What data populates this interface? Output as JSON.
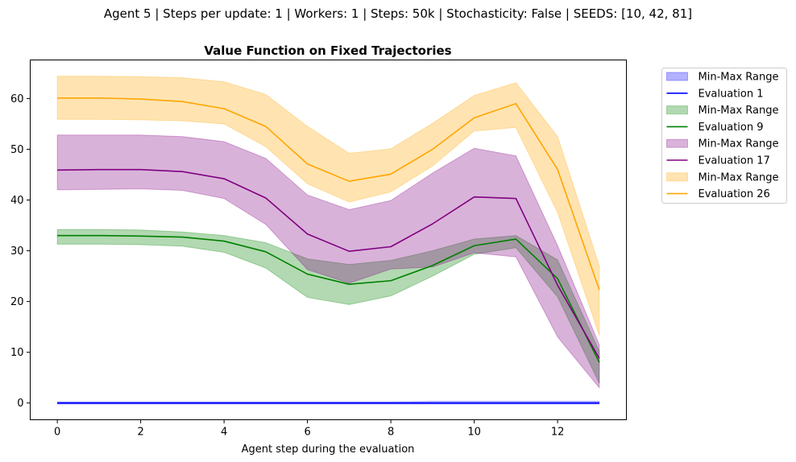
{
  "figure": {
    "suptitle": "Agent 5 | Steps per update: 1 | Workers: 1 | Steps: 50k | Stochasticity: False | SEEDS: [10, 42, 81]"
  },
  "chart_data": {
    "type": "line",
    "title": "Value Function on Fixed Trajectories",
    "xlabel": "Agent step during the evaluation",
    "ylabel": "",
    "xlim": [
      -0.65,
      13.65
    ],
    "ylim": [
      -3.3,
      67.6
    ],
    "xticks": [
      0,
      2,
      4,
      6,
      8,
      10,
      12
    ],
    "yticks": [
      0,
      10,
      20,
      30,
      40,
      50,
      60
    ],
    "grid": false,
    "legend_position": "outside-right-top",
    "x": [
      0,
      1,
      2,
      3,
      4,
      5,
      6,
      7,
      8,
      9,
      10,
      11,
      12,
      13
    ],
    "series": [
      {
        "name": "Evaluation 1",
        "band_name": "Min-Max Range",
        "color": "#0000ff",
        "band_color": "#0000ff",
        "values": [
          0,
          0,
          0,
          0,
          0,
          0,
          0,
          0,
          0,
          0,
          0,
          0,
          0,
          0
        ],
        "min": [
          -0.2,
          -0.2,
          -0.2,
          -0.2,
          -0.2,
          -0.2,
          -0.2,
          -0.2,
          -0.2,
          -0.2,
          -0.2,
          -0.2,
          -0.2,
          -0.2
        ],
        "max": [
          0.2,
          0.2,
          0.2,
          0.2,
          0.2,
          0.2,
          0.2,
          0.2,
          0.2,
          0.3,
          0.3,
          0.3,
          0.3,
          0.3
        ]
      },
      {
        "name": "Evaluation 9",
        "band_name": "Min-Max Range",
        "color": "#008000",
        "band_color": "#008000",
        "values": [
          33,
          33,
          32.9,
          32.7,
          31.9,
          29.8,
          25.4,
          23.4,
          24.1,
          27.1,
          31.0,
          32.3,
          24.5,
          8.0
        ],
        "min": [
          31.3,
          31.3,
          31.2,
          30.9,
          29.7,
          26.6,
          20.8,
          19.4,
          21.1,
          25.0,
          29.3,
          30.6,
          20.9,
          3.9
        ],
        "max": [
          34.2,
          34.2,
          34.1,
          33.7,
          33.0,
          31.6,
          28.4,
          27.3,
          28.1,
          30.0,
          32.3,
          33.0,
          28.2,
          10.2
        ]
      },
      {
        "name": "Evaluation 17",
        "band_name": "Min-Max Range",
        "color": "#800080",
        "band_color": "#800080",
        "values": [
          45.9,
          46.0,
          46.0,
          45.6,
          44.2,
          40.4,
          33.3,
          29.9,
          30.8,
          35.3,
          40.6,
          40.3,
          23.2,
          8.8
        ],
        "min": [
          42.0,
          42.1,
          42.2,
          41.9,
          40.3,
          35.2,
          26.3,
          23.6,
          26.4,
          26.8,
          29.6,
          28.8,
          13.0,
          3.0
        ],
        "max": [
          52.8,
          52.8,
          52.8,
          52.5,
          51.5,
          48.2,
          41.0,
          38.1,
          39.9,
          45.3,
          50.2,
          48.7,
          31.0,
          11.5
        ]
      },
      {
        "name": "Evaluation 26",
        "band_name": "Min-Max Range",
        "color": "#ffa500",
        "band_color": "#ffa500",
        "values": [
          60.1,
          60.1,
          59.9,
          59.4,
          58.0,
          54.5,
          47.1,
          43.7,
          45.1,
          50.0,
          56.2,
          59.0,
          46.0,
          22.3
        ],
        "min": [
          55.9,
          55.9,
          55.8,
          55.6,
          55.0,
          50.5,
          43.2,
          39.6,
          41.6,
          46.7,
          53.6,
          54.3,
          37.5,
          13.3
        ],
        "max": [
          64.4,
          64.4,
          64.3,
          64.1,
          63.3,
          60.8,
          54.5,
          49.2,
          50.1,
          55.1,
          60.6,
          63.1,
          52.5,
          27.0
        ]
      }
    ]
  }
}
